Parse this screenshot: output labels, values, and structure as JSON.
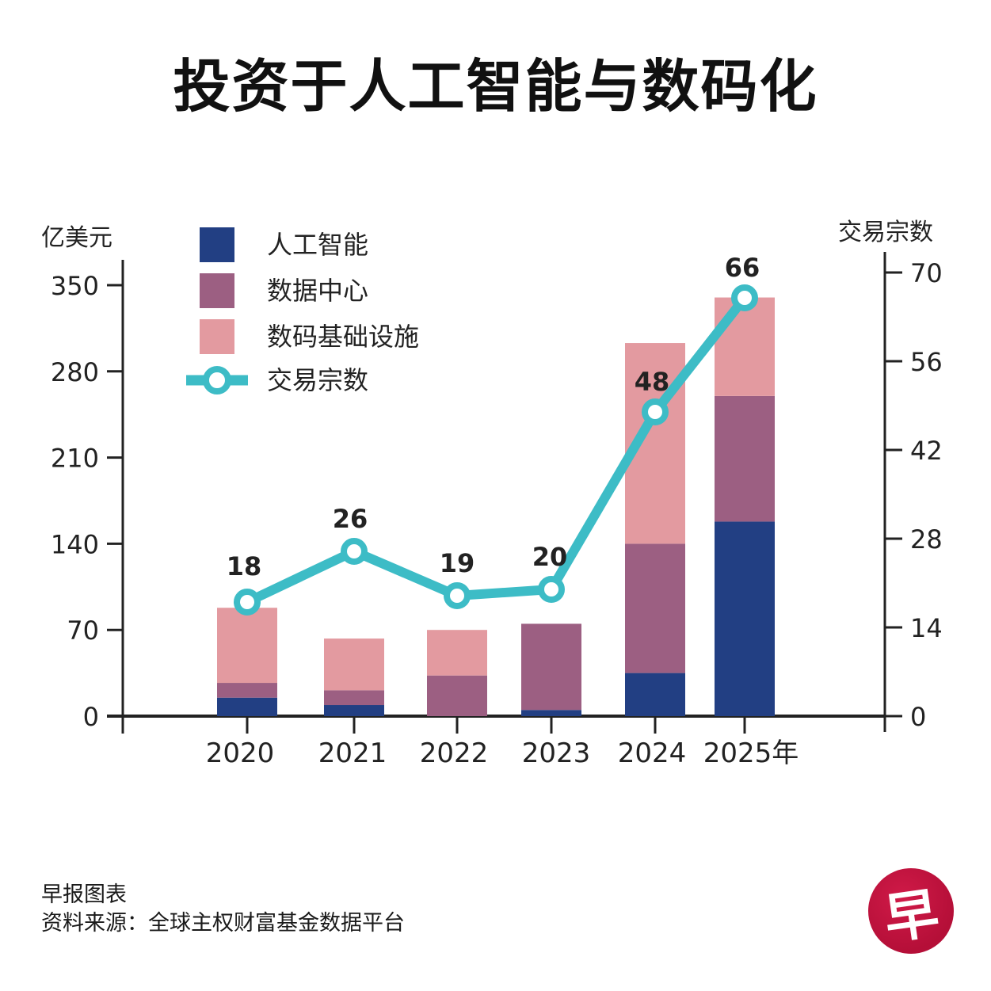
{
  "title": "投资于人工智能与数码化",
  "footer": {
    "credit": "早报图表",
    "source": "资料来源：全球主权财富基金数据平台"
  },
  "logo": {
    "glyph": "早",
    "color": "#c4143f"
  },
  "chart_data": {
    "type": "bar",
    "stacked": true,
    "title": "投资于人工智能与数码化",
    "categories": [
      "2020",
      "2021",
      "2022",
      "2023",
      "2024",
      "2025年"
    ],
    "ylabel": "亿美元",
    "ylabel_right": "交易宗数",
    "ylim": [
      0,
      350
    ],
    "yticks": [
      0,
      70,
      140,
      210,
      280,
      350
    ],
    "ylim_right": [
      0,
      70
    ],
    "yticks_right": [
      0,
      14,
      28,
      42,
      56,
      70
    ],
    "grid": false,
    "legend_position": "top-left",
    "series": [
      {
        "name": "人工智能",
        "color": "#223f83",
        "values": [
          15,
          9,
          0,
          5,
          35,
          158
        ]
      },
      {
        "name": "数据中心",
        "color": "#9c5f82",
        "values": [
          12,
          12,
          33,
          70,
          105,
          102
        ]
      },
      {
        "name": "数码基础设施",
        "color": "#e39aa0",
        "values": [
          61,
          42,
          37,
          0,
          163,
          80
        ]
      }
    ],
    "line_series": {
      "name": "交易宗数",
      "type": "line",
      "axis": "right",
      "color": "#3dbcc6",
      "values": [
        18,
        26,
        19,
        20,
        48,
        66
      ],
      "data_labels": [
        "18",
        "26",
        "19",
        "20",
        "48",
        "66"
      ]
    }
  }
}
